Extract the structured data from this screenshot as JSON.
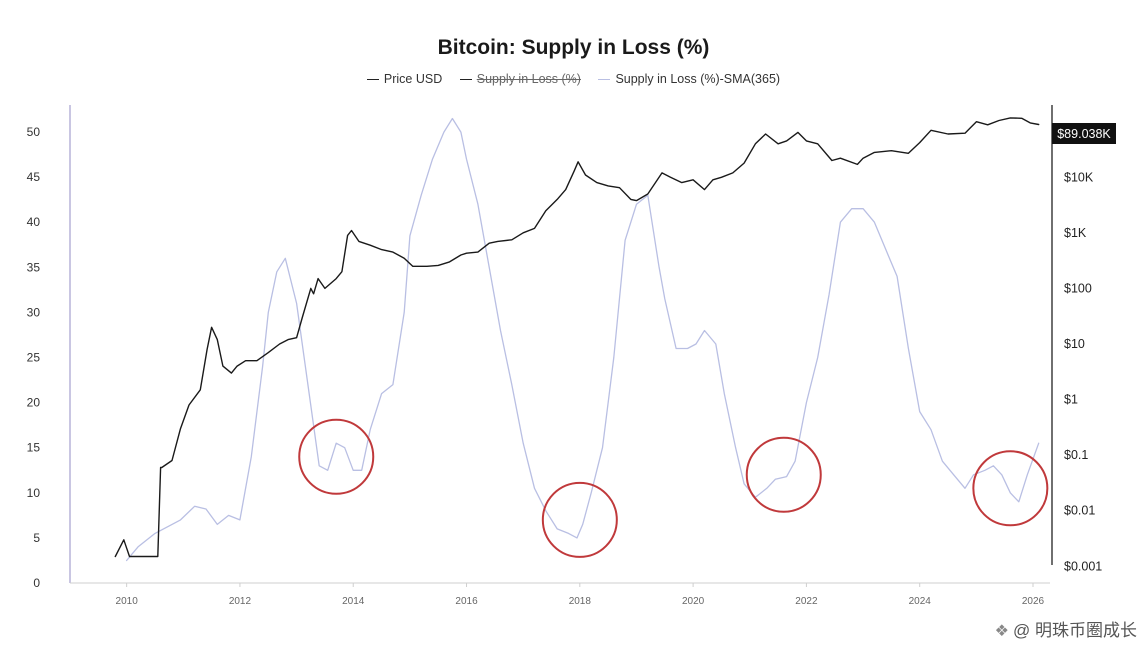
{
  "chart_data": {
    "type": "line",
    "title": "Bitcoin: Supply in Loss (%)",
    "legend": [
      {
        "name": "Price USD",
        "style": "active",
        "color": "#222222"
      },
      {
        "name": "Supply in Loss (%)",
        "style": "hidden",
        "color": "#222222"
      },
      {
        "name": "Supply in Loss (%)-SMA(365)",
        "style": "active",
        "color": "#b9bfe3"
      }
    ],
    "x_ticks": [
      "2010",
      "2012",
      "2014",
      "2016",
      "2018",
      "2020",
      "2022",
      "2024",
      "2026"
    ],
    "x_range": [
      2009.0,
      2026.3
    ],
    "y_left": {
      "ticks": [
        0,
        5,
        10,
        15,
        20,
        25,
        30,
        35,
        40,
        45,
        50
      ],
      "range": [
        0,
        53
      ]
    },
    "y_right": {
      "labels": [
        "$10K",
        "$1K",
        "$100",
        "$10",
        "$1",
        "$0.1",
        "$0.01",
        "$0.001"
      ],
      "log_values": [
        4,
        3,
        2,
        1,
        0,
        -1,
        -2,
        -3
      ],
      "log_range": [
        -3.3,
        5.3
      ]
    },
    "price_badge": "$89.038K",
    "series": [
      {
        "name": "Supply in Loss (%)-SMA(365)",
        "axis": "left",
        "x": [
          2010.0,
          2010.2,
          2010.5,
          2010.8,
          2010.95,
          2011.2,
          2011.4,
          2011.6,
          2011.8,
          2012.0,
          2012.2,
          2012.4,
          2012.5,
          2012.65,
          2012.8,
          2013.0,
          2013.2,
          2013.4,
          2013.55,
          2013.7,
          2013.85,
          2014.0,
          2014.15,
          2014.3,
          2014.5,
          2014.7,
          2014.9,
          2015.0,
          2015.2,
          2015.4,
          2015.6,
          2015.75,
          2015.9,
          2016.0,
          2016.2,
          2016.4,
          2016.6,
          2016.8,
          2017.0,
          2017.2,
          2017.4,
          2017.6,
          2017.8,
          2017.95,
          2018.05,
          2018.2,
          2018.4,
          2018.6,
          2018.8,
          2019.0,
          2019.2,
          2019.4,
          2019.5,
          2019.7,
          2019.9,
          2020.05,
          2020.2,
          2020.4,
          2020.55,
          2020.75,
          2020.9,
          2021.1,
          2021.3,
          2021.45,
          2021.65,
          2021.8,
          2022.0,
          2022.2,
          2022.4,
          2022.6,
          2022.8,
          2023.0,
          2023.2,
          2023.4,
          2023.6,
          2023.8,
          2024.0,
          2024.2,
          2024.4,
          2024.6,
          2024.8,
          2024.95,
          2025.15,
          2025.3,
          2025.45,
          2025.6,
          2025.75,
          2025.9,
          2026.1
        ],
        "y": [
          2.5,
          4.0,
          5.5,
          6.5,
          7.0,
          8.5,
          8.2,
          6.5,
          7.5,
          7.0,
          14.0,
          24.0,
          30.0,
          34.5,
          36.0,
          31.0,
          22.0,
          13.0,
          12.5,
          15.5,
          15.0,
          12.5,
          12.5,
          17.0,
          21.0,
          22.0,
          30.0,
          38.5,
          43.0,
          47.0,
          50.0,
          51.5,
          50.0,
          47.0,
          42.0,
          35.0,
          28.0,
          22.0,
          15.5,
          10.5,
          8.0,
          6.0,
          5.5,
          5.0,
          6.5,
          10.0,
          15.0,
          25.0,
          38.0,
          42.0,
          43.0,
          35.0,
          31.5,
          26.0,
          26.0,
          26.5,
          28.0,
          26.5,
          21.0,
          15.0,
          11.0,
          9.5,
          10.5,
          11.5,
          11.8,
          13.5,
          20.0,
          25.0,
          32.0,
          40.0,
          41.5,
          41.5,
          40.0,
          37.0,
          34.0,
          26.0,
          19.0,
          17.0,
          13.5,
          12.0,
          10.5,
          12.0,
          12.5,
          13.0,
          12.0,
          10.0,
          9.0,
          12.0,
          15.5
        ]
      },
      {
        "name": "Price USD",
        "axis": "right-log",
        "x": [
          2009.8,
          2009.95,
          2010.05,
          2010.2,
          2010.4,
          2010.55,
          2010.6,
          2010.62,
          2010.8,
          2010.95,
          2011.1,
          2011.3,
          2011.42,
          2011.5,
          2011.6,
          2011.7,
          2011.85,
          2011.95,
          2012.1,
          2012.3,
          2012.5,
          2012.7,
          2012.85,
          2013.0,
          2013.1,
          2013.25,
          2013.3,
          2013.38,
          2013.5,
          2013.7,
          2013.8,
          2013.9,
          2013.97,
          2014.1,
          2014.3,
          2014.5,
          2014.7,
          2014.9,
          2015.05,
          2015.3,
          2015.5,
          2015.7,
          2015.9,
          2016.0,
          2016.2,
          2016.4,
          2016.55,
          2016.8,
          2017.0,
          2017.2,
          2017.4,
          2017.6,
          2017.75,
          2017.9,
          2017.97,
          2018.1,
          2018.3,
          2018.5,
          2018.7,
          2018.9,
          2019.0,
          2019.2,
          2019.45,
          2019.6,
          2019.8,
          2020.0,
          2020.2,
          2020.35,
          2020.5,
          2020.7,
          2020.9,
          2021.1,
          2021.28,
          2021.5,
          2021.65,
          2021.85,
          2022.0,
          2022.2,
          2022.45,
          2022.6,
          2022.9,
          2023.0,
          2023.2,
          2023.5,
          2023.8,
          2024.0,
          2024.2,
          2024.5,
          2024.8,
          2025.0,
          2025.2,
          2025.4,
          2025.6,
          2025.8,
          2025.95,
          2026.1
        ],
        "y": [
          0.0015,
          0.003,
          0.0015,
          0.0015,
          0.0015,
          0.0015,
          0.06,
          0.06,
          0.08,
          0.3,
          0.8,
          1.5,
          8,
          20,
          12,
          4,
          3,
          4,
          5,
          5,
          7,
          10,
          12,
          13,
          30,
          100,
          80,
          150,
          100,
          150,
          200,
          900,
          1100,
          700,
          600,
          500,
          450,
          350,
          250,
          250,
          260,
          300,
          400,
          430,
          450,
          650,
          700,
          750,
          1000,
          1200,
          2500,
          4000,
          6000,
          13000,
          19000,
          11000,
          8000,
          7000,
          6500,
          4000,
          3800,
          5000,
          12000,
          10000,
          8000,
          9000,
          6000,
          9000,
          10000,
          12000,
          18000,
          40000,
          60000,
          40000,
          45000,
          64000,
          45000,
          40000,
          20000,
          22000,
          17000,
          22000,
          28000,
          30000,
          27000,
          42000,
          70000,
          60000,
          62000,
          100000,
          88000,
          105000,
          117000,
          115000,
          95000,
          89000
        ]
      }
    ],
    "annotations": [
      {
        "shape": "circle",
        "color": "#c0393b",
        "x": 2013.7,
        "y": 14.0
      },
      {
        "shape": "circle",
        "color": "#c0393b",
        "x": 2018.0,
        "y": 7.0
      },
      {
        "shape": "circle",
        "color": "#c0393b",
        "x": 2021.6,
        "y": 12.0
      },
      {
        "shape": "circle",
        "color": "#c0393b",
        "x": 2025.6,
        "y": 10.5
      }
    ]
  },
  "watermark": {
    "text": "@ 明珠币圈成长",
    "icon": "brand-logo-icon"
  }
}
